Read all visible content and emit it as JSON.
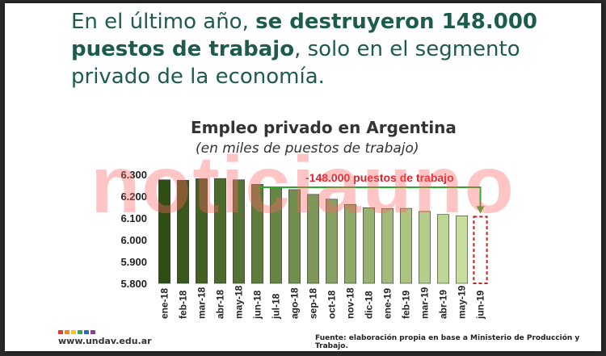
{
  "headline": {
    "part1": "En el último año, ",
    "bold1": "se destruyeron 148.000 puestos de trabajo",
    "part2": ", solo en el segmento privado de la economía."
  },
  "watermark": "noticiauno",
  "footer": {
    "logo_url": "www.undav.edu.ar",
    "logo_colors": [
      "#e63c2e",
      "#f08a24",
      "#f5c518",
      "#3aa655",
      "#2e6db4",
      "#8e3c97"
    ],
    "source": "Fuente: elaboración propia en base a Ministerio de Producción y Trabajo."
  },
  "chart_data": {
    "type": "bar",
    "title": "Empleo privado en Argentina",
    "subtitle": "(en miles de puestos de trabajo)",
    "categories": [
      "ene-18",
      "feb-18",
      "mar-18",
      "abr-18",
      "may-18",
      "jun-18",
      "jul-18",
      "ago-18",
      "sep-18",
      "oct-18",
      "nov-18",
      "dic-18",
      "ene-19",
      "feb-19",
      "mar-19",
      "abr-19",
      "may-19",
      "jun-19"
    ],
    "values": [
      6275,
      6273,
      6280,
      6281,
      6275,
      6254,
      6238,
      6230,
      6208,
      6186,
      6162,
      6147,
      6143,
      6144,
      6130,
      6116,
      6110,
      6106
    ],
    "ylim": [
      5800,
      6300
    ],
    "yticks": [
      5800,
      5900,
      6000,
      6100,
      6200,
      6300
    ],
    "ytick_labels": [
      "5.800",
      "5.900",
      "6.000",
      "6.100",
      "6.200",
      "6.300"
    ],
    "annotation": "-148.000 puestos de trabajo",
    "highlight_last": true,
    "colors": {
      "bar_start": "#2f4f12",
      "bar_end": "#c8df9c",
      "arrow": "#2aa82a",
      "annotation_text": "#e0202a",
      "highlight_box": "#d11a1a"
    },
    "grid": false,
    "legend": "none"
  }
}
